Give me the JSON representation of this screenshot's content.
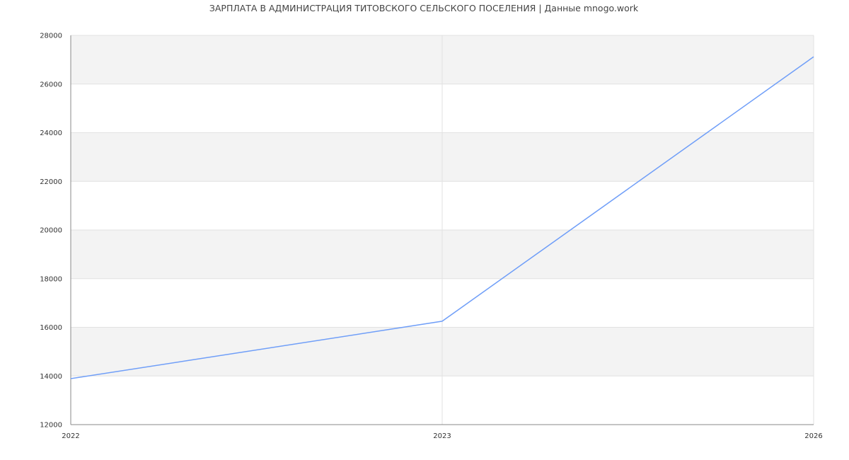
{
  "chart_data": {
    "type": "line",
    "title": "ЗАРПЛАТА В АДМИНИСТРАЦИЯ ТИТОВСКОГО СЕЛЬСКОГО ПОСЕЛЕНИЯ | Данные mnogo.work",
    "xlabel": "",
    "ylabel": "",
    "categories": [
      "2022",
      "2023",
      "2026"
    ],
    "series": [
      {
        "values": [
          13890,
          16250,
          27120
        ],
        "color": "#6f9ef8"
      }
    ],
    "ylim": [
      12000,
      28000
    ],
    "yticks": [
      "12000",
      "14000",
      "16000",
      "18000",
      "20000",
      "22000",
      "24000",
      "26000",
      "28000"
    ],
    "grid": true,
    "band_colors": [
      "#ffffff",
      "#f3f3f3"
    ],
    "legend": "none"
  }
}
